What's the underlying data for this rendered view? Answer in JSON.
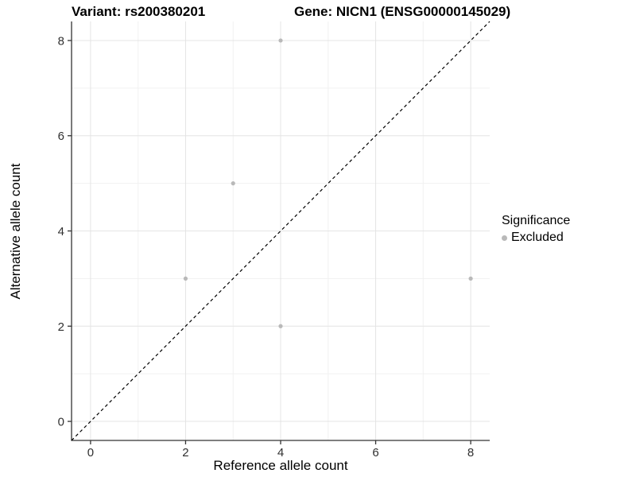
{
  "chart_data": {
    "type": "scatter",
    "titles": {
      "left": "Variant: rs200380201",
      "right": "Gene: NICN1 (ENSG00000145029)"
    },
    "xlabel": "Reference allele count",
    "ylabel": "Alternative allele count",
    "xlim": [
      -0.4,
      8.4
    ],
    "ylim": [
      -0.4,
      8.4
    ],
    "xticks": [
      0,
      2,
      4,
      6,
      8
    ],
    "yticks": [
      0,
      2,
      4,
      6,
      8
    ],
    "xminor": [
      1,
      3,
      5,
      7
    ],
    "yminor": [
      1,
      3,
      5,
      7
    ],
    "grid": "major and minor gridlines, white panel background",
    "series": [
      {
        "name": "Excluded",
        "marker": "circle",
        "color": "#b9b9b9",
        "points": [
          [
            4,
            8
          ],
          [
            3,
            5
          ],
          [
            2,
            3
          ],
          [
            8,
            3
          ],
          [
            4,
            2
          ]
        ]
      }
    ],
    "reference_line": {
      "type": "identity y=x",
      "style": "dashed",
      "color": "#000000",
      "from": [
        -0.4,
        -0.4
      ],
      "to": [
        8.4,
        8.4
      ]
    },
    "legend": {
      "title": "Significance",
      "position": "right",
      "entries": [
        {
          "label": "Excluded",
          "marker": "circle",
          "color": "#b9b9b9"
        }
      ]
    },
    "colors": {
      "background": "#ffffff",
      "grid_major": "#e4e4e4",
      "grid_minor": "#f1f1f1",
      "axis_line": "#333333",
      "tick_label": "#303030",
      "title_text": "#000000",
      "point": "#b9b9b9"
    }
  }
}
